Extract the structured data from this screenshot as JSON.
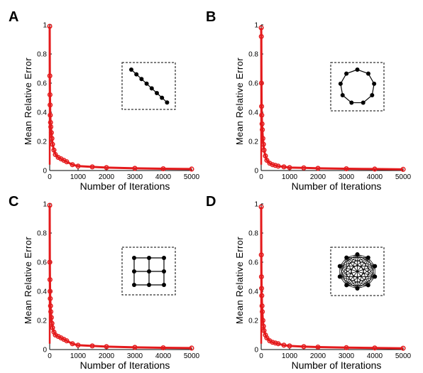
{
  "chart_data": [
    {
      "panel": "A",
      "type": "line",
      "xlabel": "Number of Iterations",
      "ylabel": "Mean Relative Error",
      "xlim": [
        0,
        5000
      ],
      "ylim": [
        0,
        1
      ],
      "xticks": [
        "0",
        "1000",
        "2000",
        "3000",
        "4000",
        "5000"
      ],
      "yticks": [
        "0",
        "0.2",
        "0.4",
        "0.6",
        "0.8",
        "1"
      ],
      "line_color": "#e41a1c",
      "inset_graph": "line",
      "series": [
        {
          "x": [
            1,
            5,
            10,
            15,
            20,
            30,
            40,
            60,
            80,
            100,
            150,
            200,
            300,
            400,
            500,
            600,
            800,
            1000,
            1500,
            2000,
            3000,
            4000,
            5000
          ],
          "y": [
            0.99,
            0.65,
            0.52,
            0.45,
            0.38,
            0.33,
            0.3,
            0.26,
            0.22,
            0.18,
            0.14,
            0.11,
            0.09,
            0.08,
            0.07,
            0.06,
            0.04,
            0.03,
            0.025,
            0.02,
            0.015,
            0.012,
            0.01
          ]
        }
      ]
    },
    {
      "panel": "B",
      "type": "line",
      "xlabel": "Number of Iterations",
      "ylabel": "Mean Relative Error",
      "xlim": [
        0,
        5000
      ],
      "ylim": [
        0,
        1
      ],
      "xticks": [
        "0",
        "1000",
        "2000",
        "3000",
        "4000",
        "5000"
      ],
      "yticks": [
        "0",
        "0.2",
        "0.4",
        "0.6",
        "0.8",
        "1"
      ],
      "line_color": "#e41a1c",
      "inset_graph": "ring",
      "series": [
        {
          "x": [
            1,
            5,
            10,
            15,
            20,
            30,
            40,
            60,
            80,
            100,
            150,
            200,
            300,
            400,
            500,
            600,
            800,
            1000,
            1500,
            2000,
            3000,
            4000,
            5000
          ],
          "y": [
            0.98,
            0.92,
            0.6,
            0.44,
            0.38,
            0.32,
            0.28,
            0.22,
            0.18,
            0.14,
            0.1,
            0.07,
            0.05,
            0.04,
            0.035,
            0.03,
            0.025,
            0.02,
            0.018,
            0.015,
            0.012,
            0.01,
            0.008
          ]
        }
      ]
    },
    {
      "panel": "C",
      "type": "line",
      "xlabel": "Number of Iterations",
      "ylabel": "Mean Relative Error",
      "xlim": [
        0,
        5000
      ],
      "ylim": [
        0,
        1
      ],
      "xticks": [
        "0",
        "1000",
        "2000",
        "3000",
        "4000",
        "5000"
      ],
      "yticks": [
        "0",
        "0.2",
        "0.4",
        "0.6",
        "0.8",
        "1"
      ],
      "line_color": "#e41a1c",
      "inset_graph": "grid",
      "series": [
        {
          "x": [
            1,
            5,
            10,
            15,
            20,
            30,
            40,
            60,
            80,
            100,
            150,
            200,
            300,
            400,
            500,
            600,
            800,
            1000,
            1500,
            2000,
            3000,
            4000,
            5000
          ],
          "y": [
            0.99,
            0.6,
            0.48,
            0.4,
            0.35,
            0.3,
            0.26,
            0.22,
            0.18,
            0.15,
            0.12,
            0.1,
            0.09,
            0.08,
            0.07,
            0.06,
            0.04,
            0.03,
            0.025,
            0.02,
            0.015,
            0.012,
            0.01
          ]
        }
      ]
    },
    {
      "panel": "D",
      "type": "line",
      "xlabel": "Number of Iterations",
      "ylabel": "Mean Relative Error",
      "xlim": [
        0,
        5000
      ],
      "ylim": [
        0,
        1
      ],
      "xticks": [
        "0",
        "1000",
        "2000",
        "3000",
        "4000",
        "5000"
      ],
      "yticks": [
        "0",
        "0.2",
        "0.4",
        "0.6",
        "0.8",
        "1"
      ],
      "line_color": "#e41a1c",
      "inset_graph": "complete",
      "series": [
        {
          "x": [
            1,
            5,
            10,
            15,
            20,
            30,
            40,
            60,
            80,
            100,
            150,
            200,
            300,
            400,
            500,
            600,
            800,
            1000,
            1500,
            2000,
            3000,
            4000,
            5000
          ],
          "y": [
            0.98,
            0.65,
            0.5,
            0.42,
            0.37,
            0.3,
            0.26,
            0.2,
            0.16,
            0.13,
            0.1,
            0.08,
            0.06,
            0.05,
            0.045,
            0.04,
            0.03,
            0.025,
            0.02,
            0.017,
            0.013,
            0.011,
            0.009
          ]
        }
      ]
    }
  ]
}
